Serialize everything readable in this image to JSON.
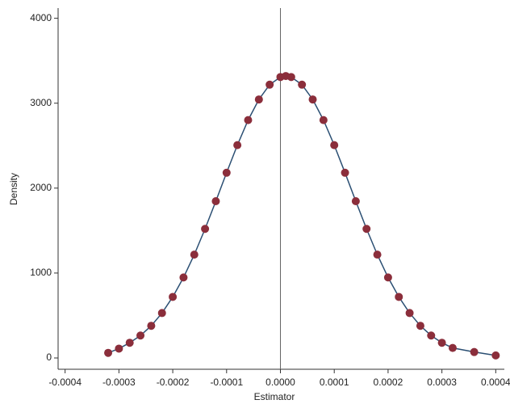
{
  "chart_data": {
    "type": "scatter",
    "x_label": "Estimator",
    "y_label": "Density",
    "x": [
      -0.00032,
      -0.0003,
      -0.00028,
      -0.00026,
      -0.00024,
      -0.00022,
      -0.0002,
      -0.00018,
      -0.00016,
      -0.00014,
      -0.00012,
      -0.0001,
      -8e-05,
      -6e-05,
      -4e-05,
      -2e-05,
      0,
      1e-05,
      2e-05,
      4e-05,
      6e-05,
      8e-05,
      0.0001,
      0.00012,
      0.00014,
      0.00016,
      0.00018,
      0.0002,
      0.00022,
      0.00024,
      0.00026,
      0.00028,
      0.0003,
      0.00032,
      0.00036,
      0.0004
    ],
    "series": [
      {
        "color": "#8b2e3b",
        "line_color": "#2b4f73",
        "values": [
          60,
          110,
          179,
          264,
          379,
          529,
          719,
          948,
          1217,
          1520,
          1846,
          2181,
          2506,
          2801,
          3044,
          3218,
          3308,
          3320,
          3308,
          3218,
          3044,
          2801,
          2506,
          2181,
          1846,
          1520,
          1217,
          948,
          719,
          529,
          379,
          264,
          179,
          118,
          70,
          30
        ]
      }
    ],
    "reference_line_x": 0,
    "xlim": [
      -0.000413,
      0.000416
    ],
    "ylim": [
      -133,
      4120
    ],
    "xticks": [
      -0.0004,
      -0.0003,
      -0.0002,
      -0.0001,
      {
        "value": 0,
        "label": "0.0000"
      },
      0.0001,
      0.0002,
      0.0003,
      0.0004
    ],
    "yticks": [
      0,
      1000,
      2000,
      3000,
      4000
    ]
  }
}
